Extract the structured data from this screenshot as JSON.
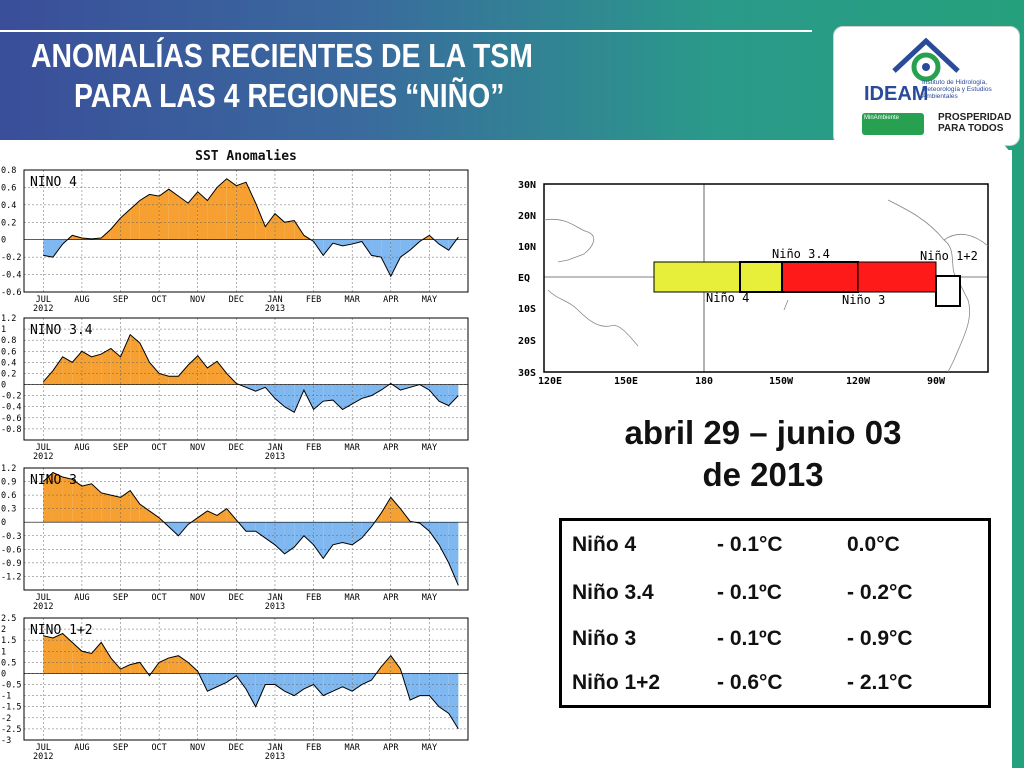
{
  "slide": {
    "title_line1": "ANOMALÍAS RECIENTES DE LA TSM",
    "title_line2": "PARA LAS 4 REGIONES “NIÑO”",
    "date_line1": "abril 29 – junio 03",
    "date_line2": "de 2013"
  },
  "logo": {
    "name": "IDEAM",
    "institute": "Instituto de Hidrología, Meteorología y Estudios Ambientales",
    "ministry": "MinAmbiente",
    "slogan_line1": "PROSPERIDAD",
    "slogan_line2": "PARA TODOS"
  },
  "table": {
    "rows": [
      {
        "region": "Niño 4",
        "week": "-  0.1°C",
        "month": "0.0°C"
      },
      {
        "region": "Niño 3.4",
        "week": "- 0.1ºC",
        "month": "- 0.2°C"
      },
      {
        "region": "Niño 3",
        "week": "- 0.1ºC",
        "month": "- 0.9°C"
      },
      {
        "region": "Niño 1+2",
        "week": "- 0.6°C",
        "month": "- 2.1°C"
      }
    ]
  },
  "colors": {
    "positive": "#f5a030",
    "negative": "#7fb8f0",
    "nino4_box": "#e8ef3a",
    "nino3_box": "#ff1a1a"
  },
  "map": {
    "lat_labels": [
      "30N",
      "20N",
      "10N",
      "EQ",
      "10S",
      "20S",
      "30S"
    ],
    "lon_labels": [
      "120E",
      "150E",
      "180",
      "150W",
      "120W",
      "90W"
    ],
    "region_labels": {
      "n4": "Niño 4",
      "n34": "Niño 3.4",
      "n3": "Niño 3",
      "n12": "Niño 1+2"
    }
  },
  "chart_data": [
    {
      "type": "area",
      "title": "SST Anomalies",
      "panel_label": "NINO 4",
      "x_month_labels": [
        "JUL",
        "AUG",
        "SEP",
        "OCT",
        "NOV",
        "DEC",
        "JAN",
        "FEB",
        "MAR",
        "APR",
        "MAY"
      ],
      "x_year_labels": [
        "2012",
        "2013"
      ],
      "yticks": [
        "0.8",
        "0.6",
        "0.4",
        "0.2",
        "0",
        "-0.2",
        "-0.4",
        "-0.6"
      ],
      "ylim": [
        -0.6,
        0.8
      ],
      "x": [
        0,
        0.25,
        0.5,
        0.75,
        1,
        1.25,
        1.5,
        1.75,
        2,
        2.25,
        2.5,
        2.75,
        3,
        3.25,
        3.5,
        3.75,
        4,
        4.25,
        4.5,
        4.75,
        5,
        5.25,
        5.5,
        5.75,
        6,
        6.25,
        6.5,
        6.75,
        7,
        7.25,
        7.5,
        7.75,
        8,
        8.25,
        8.5,
        8.75,
        9,
        9.25,
        9.5,
        9.75,
        10,
        10.25,
        10.5,
        10.75
      ],
      "y": [
        -0.18,
        -0.2,
        -0.05,
        0.05,
        0.02,
        0.01,
        0.02,
        0.12,
        0.25,
        0.35,
        0.45,
        0.52,
        0.5,
        0.58,
        0.5,
        0.42,
        0.55,
        0.45,
        0.6,
        0.7,
        0.62,
        0.66,
        0.42,
        0.15,
        0.3,
        0.2,
        0.22,
        0.05,
        -0.02,
        -0.18,
        -0.04,
        -0.07,
        -0.05,
        -0.02,
        -0.18,
        -0.2,
        -0.42,
        -0.2,
        -0.12,
        -0.02,
        0.05,
        -0.05,
        -0.12,
        0.03
      ]
    },
    {
      "type": "area",
      "panel_label": "NINO 3.4",
      "x_month_labels": [
        "JUL",
        "AUG",
        "SEP",
        "OCT",
        "NOV",
        "DEC",
        "JAN",
        "FEB",
        "MAR",
        "APR",
        "MAY"
      ],
      "x_year_labels": [
        "2012",
        "2013"
      ],
      "yticks": [
        "1.2",
        "1",
        "0.8",
        "0.6",
        "0.4",
        "0.2",
        "0",
        "-0.2",
        "-0.4",
        "-0.6",
        "-0.8"
      ],
      "ylim": [
        -1.0,
        1.2
      ],
      "x": [
        0,
        0.25,
        0.5,
        0.75,
        1,
        1.25,
        1.5,
        1.75,
        2,
        2.25,
        2.5,
        2.75,
        3,
        3.25,
        3.5,
        3.75,
        4,
        4.25,
        4.5,
        4.75,
        5,
        5.25,
        5.5,
        5.75,
        6,
        6.25,
        6.5,
        6.75,
        7,
        7.25,
        7.5,
        7.75,
        8,
        8.25,
        8.5,
        8.75,
        9,
        9.25,
        9.5,
        9.75,
        10,
        10.25,
        10.5,
        10.75
      ],
      "y": [
        0.05,
        0.25,
        0.5,
        0.4,
        0.6,
        0.5,
        0.55,
        0.65,
        0.5,
        0.9,
        0.75,
        0.4,
        0.2,
        0.15,
        0.15,
        0.35,
        0.52,
        0.3,
        0.42,
        0.2,
        0.02,
        -0.05,
        -0.12,
        -0.05,
        -0.25,
        -0.4,
        -0.5,
        -0.1,
        -0.45,
        -0.3,
        -0.28,
        -0.45,
        -0.35,
        -0.25,
        -0.2,
        -0.1,
        0.02,
        -0.1,
        -0.05,
        0.0,
        -0.1,
        -0.3,
        -0.38,
        -0.2
      ]
    },
    {
      "type": "area",
      "panel_label": "NINO 3",
      "x_month_labels": [
        "JUL",
        "AUG",
        "SEP",
        "OCT",
        "NOV",
        "DEC",
        "JAN",
        "FEB",
        "MAR",
        "APR",
        "MAY"
      ],
      "x_year_labels": [
        "2012",
        "2013"
      ],
      "yticks": [
        "1.2",
        "0.9",
        "0.6",
        "0.3",
        "0",
        "-0.3",
        "-0.6",
        "-0.9",
        "-1.2"
      ],
      "ylim": [
        -1.5,
        1.2
      ],
      "x": [
        0,
        0.25,
        0.5,
        0.75,
        1,
        1.25,
        1.5,
        1.75,
        2,
        2.25,
        2.5,
        2.75,
        3,
        3.25,
        3.5,
        3.75,
        4,
        4.25,
        4.5,
        4.75,
        5,
        5.25,
        5.5,
        5.75,
        6,
        6.25,
        6.5,
        6.75,
        7,
        7.25,
        7.5,
        7.75,
        8,
        8.25,
        8.5,
        8.75,
        9,
        9.25,
        9.5,
        9.75,
        10,
        10.25,
        10.5,
        10.75
      ],
      "y": [
        0.9,
        1.1,
        1.0,
        0.95,
        0.8,
        0.85,
        0.65,
        0.6,
        0.55,
        0.7,
        0.4,
        0.25,
        0.1,
        -0.1,
        -0.3,
        -0.05,
        0.1,
        0.25,
        0.15,
        0.3,
        0.05,
        -0.2,
        -0.2,
        -0.35,
        -0.5,
        -0.7,
        -0.55,
        -0.3,
        -0.5,
        -0.8,
        -0.5,
        -0.45,
        -0.5,
        -0.35,
        -0.1,
        0.2,
        0.55,
        0.3,
        0.02,
        -0.02,
        -0.2,
        -0.5,
        -0.9,
        -1.4
      ]
    },
    {
      "type": "area",
      "panel_label": "NINO 1+2",
      "x_month_labels": [
        "JUL",
        "AUG",
        "SEP",
        "OCT",
        "NOV",
        "DEC",
        "JAN",
        "FEB",
        "MAR",
        "APR",
        "MAY"
      ],
      "x_year_labels": [
        "2012",
        "2013"
      ],
      "yticks": [
        "2.5",
        "2",
        "1.5",
        "1",
        "0.5",
        "0",
        "-0.5",
        "-1",
        "-1.5",
        "-2",
        "-2.5",
        "-3"
      ],
      "ylim": [
        -3.0,
        2.5
      ],
      "x": [
        0,
        0.25,
        0.5,
        0.75,
        1,
        1.25,
        1.5,
        1.75,
        2,
        2.25,
        2.5,
        2.75,
        3,
        3.25,
        3.5,
        3.75,
        4,
        4.25,
        4.5,
        4.75,
        5,
        5.25,
        5.5,
        5.75,
        6,
        6.25,
        6.5,
        6.75,
        7,
        7.25,
        7.5,
        7.75,
        8,
        8.25,
        8.5,
        8.75,
        9,
        9.25,
        9.5,
        9.75,
        10,
        10.25,
        10.5,
        10.75
      ],
      "y": [
        1.7,
        1.6,
        1.8,
        1.4,
        1.0,
        0.9,
        1.4,
        0.7,
        0.2,
        0.4,
        0.5,
        -0.1,
        0.5,
        0.7,
        0.8,
        0.5,
        0.1,
        -0.8,
        -0.6,
        -0.4,
        -0.1,
        -0.7,
        -1.5,
        -0.5,
        -0.5,
        -0.8,
        -1.0,
        -0.7,
        -0.5,
        -1.0,
        -0.8,
        -0.6,
        -0.8,
        -0.5,
        -0.3,
        0.3,
        0.8,
        0.2,
        -1.2,
        -1.0,
        -1.0,
        -1.5,
        -1.8,
        -2.5
      ]
    }
  ]
}
